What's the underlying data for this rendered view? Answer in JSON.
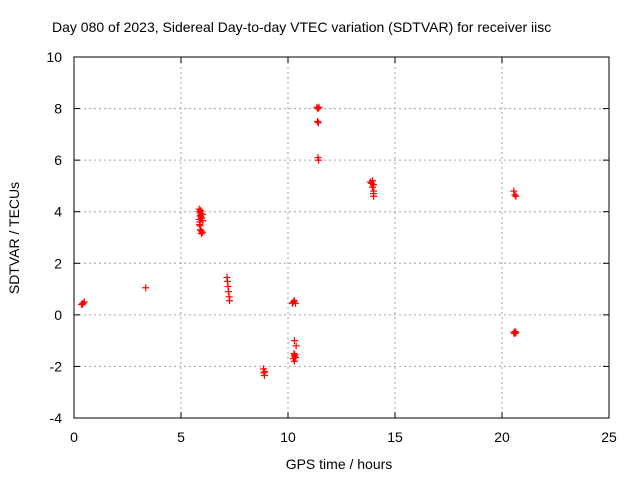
{
  "chart_data": {
    "type": "scatter",
    "title": "Day 080 of 2023, Sidereal Day-to-day VTEC variation (SDTVAR) for receiver iisc",
    "xlabel": "GPS time / hours",
    "ylabel": "SDTVAR / TECUs",
    "xlim": [
      0,
      25
    ],
    "ylim": [
      -4,
      10
    ],
    "xticks": [
      "0",
      "5",
      "10",
      "15",
      "20",
      "25"
    ],
    "yticks": [
      "-4",
      "-2",
      "0",
      "2",
      "4",
      "6",
      "8",
      "10"
    ],
    "grid": true,
    "marker": "+",
    "color": "#ff0000",
    "series": [
      {
        "name": "SDTVAR",
        "x": [
          0.35,
          0.42,
          0.48,
          0.4,
          3.35,
          5.85,
          5.88,
          5.9,
          5.92,
          5.95,
          5.85,
          5.88,
          5.9,
          5.93,
          5.96,
          6.0,
          6.02,
          5.9,
          5.95,
          6.0,
          5.87,
          5.9,
          5.95,
          7.15,
          7.17,
          7.2,
          7.22,
          7.25,
          7.27,
          8.85,
          8.87,
          8.9,
          8.92,
          10.2,
          10.25,
          10.3,
          10.35,
          10.28,
          10.3,
          10.32,
          10.35,
          10.25,
          10.3,
          10.38,
          10.3,
          11.35,
          11.4,
          11.45,
          11.38,
          11.42,
          11.4,
          11.43,
          13.85,
          13.9,
          13.95,
          14.0,
          13.95,
          14.0,
          14.0,
          14.0,
          20.55,
          20.6,
          20.65,
          20.6,
          20.62,
          20.55,
          20.6,
          20.65
        ],
        "y": [
          0.4,
          0.45,
          0.5,
          0.42,
          1.05,
          4.1,
          4.0,
          3.95,
          4.05,
          3.9,
          3.7,
          3.6,
          3.85,
          3.8,
          3.75,
          3.9,
          3.65,
          3.3,
          3.25,
          3.2,
          3.5,
          3.45,
          3.15,
          1.45,
          1.3,
          1.1,
          0.9,
          0.7,
          0.55,
          -2.1,
          -2.25,
          -2.35,
          -2.2,
          0.45,
          0.5,
          0.55,
          0.45,
          -1.5,
          -1.6,
          -1.55,
          -1.65,
          -1.7,
          -1.8,
          -1.2,
          -1.0,
          8.05,
          8.0,
          8.05,
          7.5,
          7.45,
          6.1,
          6.0,
          5.15,
          5.1,
          5.2,
          5.05,
          4.95,
          4.8,
          4.7,
          4.6,
          4.8,
          4.65,
          4.6,
          -0.65,
          -0.7,
          -0.7,
          -0.72,
          -0.68
        ]
      }
    ]
  }
}
